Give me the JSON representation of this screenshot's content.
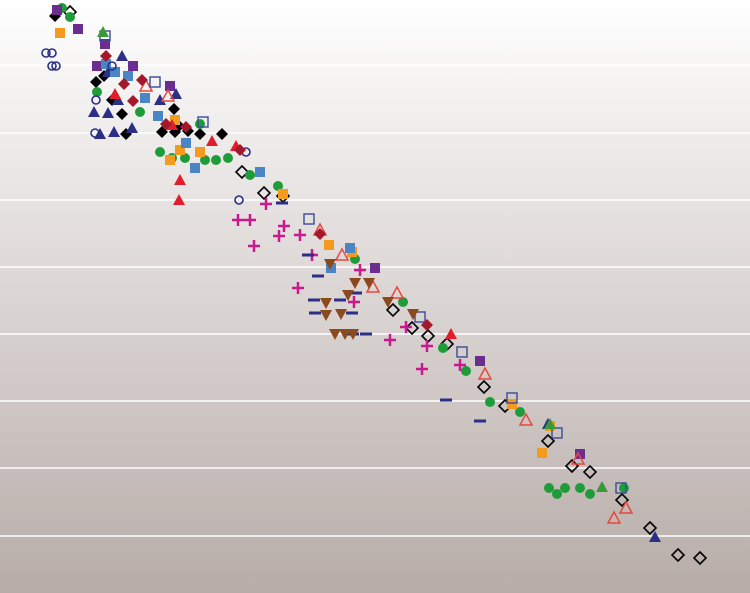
{
  "chart_data": {
    "type": "scatter",
    "xlim": [
      0,
      750
    ],
    "ylim": [
      0,
      593
    ],
    "yticks": [
      57,
      125,
      192,
      259,
      326,
      393,
      460,
      528
    ],
    "grid": true,
    "series": [
      {
        "marker": "diamond-open",
        "color": "#000000",
        "x": [
          70,
          242,
          264,
          283,
          393,
          412,
          428,
          484,
          505,
          548,
          572,
          590,
          622,
          650,
          678,
          700,
          447
        ],
        "y": [
          581,
          421,
          400,
          397,
          283,
          265,
          257,
          206,
          187,
          152,
          127,
          121,
          93,
          65,
          38,
          35,
          249
        ]
      },
      {
        "marker": "diamond",
        "color": "#000000",
        "x": [
          55,
          104,
          96,
          122,
          112,
          174,
          162,
          175,
          188,
          200,
          222,
          126,
          179
        ],
        "y": [
          577,
          517,
          511,
          479,
          493,
          484,
          461,
          461,
          462,
          459,
          459,
          459,
          467
        ]
      },
      {
        "marker": "circle",
        "color": "#1f9c3a",
        "x": [
          62,
          70,
          97,
          140,
          160,
          172,
          185,
          205,
          216,
          228,
          250,
          278,
          355,
          403,
          443,
          466,
          490,
          520,
          549,
          557,
          565,
          580,
          590,
          624,
          200
        ],
        "y": [
          585,
          576,
          501,
          481,
          441,
          435,
          435,
          433,
          433,
          435,
          418,
          407,
          334,
          291,
          245,
          222,
          191,
          181,
          105,
          99,
          105,
          105,
          99,
          105,
          469
        ]
      },
      {
        "marker": "square",
        "color": "#f39a1f",
        "x": [
          60,
          175,
          170,
          200,
          283,
          329,
          352,
          512,
          542,
          550,
          180
        ],
        "y": [
          560,
          473,
          433,
          441,
          399,
          348,
          341,
          189,
          140,
          167,
          443
        ]
      },
      {
        "marker": "square",
        "color": "#6b2d8f",
        "x": [
          78,
          57,
          105,
          133,
          97,
          170,
          375,
          480,
          580
        ],
        "y": [
          564,
          583,
          549,
          527,
          527,
          507,
          325,
          232,
          139
        ]
      },
      {
        "marker": "triangle",
        "color": "#2b2f86",
        "x": [
          122,
          108,
          160,
          176,
          94,
          108,
          114,
          100,
          132,
          548,
          655,
          118
        ],
        "y": [
          537,
          521,
          493,
          499,
          481,
          480,
          461,
          459,
          465,
          169,
          56,
          493
        ]
      },
      {
        "marker": "triangle",
        "color": "#e21d2b",
        "x": [
          180,
          179,
          212,
          236,
          451,
          115,
          172
        ],
        "y": [
          413,
          393,
          452,
          447,
          259,
          499,
          468
        ]
      },
      {
        "marker": "triangle-open",
        "color": "#e8473c",
        "x": [
          168,
          146,
          373,
          397,
          485,
          526,
          614,
          626,
          320,
          578,
          342
        ],
        "y": [
          497,
          507,
          306,
          300,
          219,
          173,
          75,
          85,
          363,
          134,
          338
        ]
      },
      {
        "marker": "square",
        "color": "#4a86c5",
        "x": [
          115,
          128,
          145,
          158,
          186,
          195,
          260,
          331,
          350,
          106
        ],
        "y": [
          521,
          517,
          495,
          477,
          450,
          425,
          421,
          325,
          345,
          529
        ]
      },
      {
        "marker": "square-open",
        "color": "#3a4a9a",
        "x": [
          155,
          203,
          309,
          420,
          462,
          512,
          557,
          621,
          105
        ],
        "y": [
          511,
          471,
          374,
          276,
          241,
          195,
          160,
          105,
          557
        ]
      },
      {
        "marker": "circle-open",
        "color": "#2b2f86",
        "x": [
          46,
          52,
          52,
          56,
          96,
          95,
          239,
          246,
          112
        ],
        "y": [
          540,
          540,
          527,
          527,
          493,
          460,
          393,
          441,
          527
        ]
      },
      {
        "marker": "plus",
        "color": "#c8198f",
        "x": [
          238,
          250,
          254,
          266,
          279,
          284,
          300,
          312,
          298,
          354,
          360,
          390,
          406,
          422,
          427,
          460
        ],
        "y": [
          373,
          373,
          347,
          389,
          357,
          367,
          358,
          338,
          305,
          291,
          323,
          253,
          266,
          224,
          247,
          228
        ]
      },
      {
        "marker": "dash",
        "color": "#2b2f86",
        "x": [
          308,
          318,
          314,
          315,
          340,
          352,
          356,
          353,
          366,
          446,
          480,
          282
        ],
        "y": [
          338,
          317,
          293,
          280,
          293,
          280,
          300,
          259,
          259,
          193,
          172,
          390
        ]
      },
      {
        "marker": "triangle-down",
        "color": "#8b4a1e",
        "x": [
          326,
          326,
          330,
          341,
          348,
          355,
          369,
          388,
          413,
          335,
          345,
          353
        ],
        "y": [
          290,
          278,
          329,
          279,
          298,
          310,
          310,
          291,
          279,
          259,
          259,
          259
        ]
      },
      {
        "marker": "diamond",
        "color": "#a3182b",
        "x": [
          106,
          124,
          133,
          166,
          186,
          240,
          320,
          427,
          142
        ],
        "y": [
          537,
          509,
          492,
          469,
          466,
          443,
          359,
          268,
          513
        ]
      },
      {
        "marker": "triangle",
        "color": "#3a9a3a",
        "x": [
          103,
          602,
          550
        ],
        "y": [
          561,
          106,
          169
        ]
      }
    ]
  }
}
